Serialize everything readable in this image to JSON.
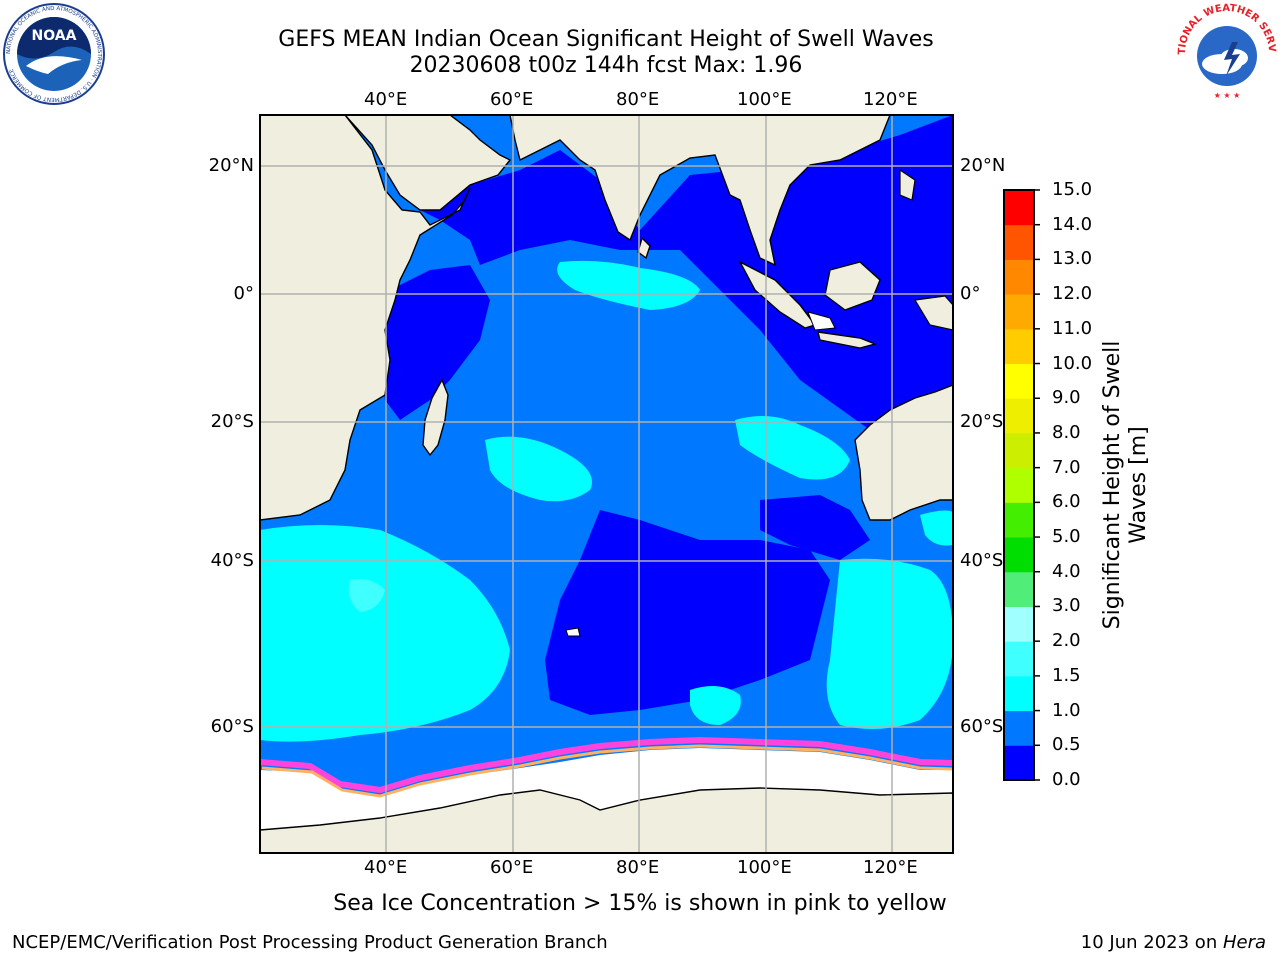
{
  "header": {
    "title_line1": "GEFS MEAN Indian Ocean Significant Height of Swell Waves",
    "title_line2": "20230608 t00z 144h fcst   Max: 1.96"
  },
  "logos": {
    "noaa_text": "NOAA",
    "noaa_ring": "NATIONAL OCEANIC AND ATMOSPHERIC ADMINISTRATION · U.S. DEPARTMENT OF COMMERCE",
    "nws_ring": "NATIONAL WEATHER SERVICE"
  },
  "map": {
    "lon_labels": [
      "40°E",
      "60°E",
      "80°E",
      "100°E",
      "120°E"
    ],
    "lat_labels": [
      "20°N",
      "0°",
      "20°S",
      "40°S",
      "60°S"
    ],
    "colors": {
      "land": "#efeedf",
      "ice": "#ffffff",
      "grid": "#b0b0b0"
    }
  },
  "colorbar": {
    "label": "Significant Height of Swell Waves [m]",
    "ticks": [
      "0.0",
      "0.5",
      "1.0",
      "1.5",
      "2.0",
      "3.0",
      "4.0",
      "5.0",
      "6.0",
      "7.0",
      "8.0",
      "9.0",
      "10.0",
      "11.0",
      "12.0",
      "13.0",
      "14.0",
      "15.0"
    ],
    "colors": [
      "#0000ff",
      "#0078ff",
      "#00ffff",
      "#40ffff",
      "#a0ffff",
      "#50ee78",
      "#00dd00",
      "#44ee00",
      "#b0ff00",
      "#ccee00",
      "#eeee00",
      "#ffff00",
      "#ffcc00",
      "#ffaa00",
      "#ff8800",
      "#ff5500",
      "#ff0000"
    ]
  },
  "caption": "Sea Ice Concentration > 15% is shown in pink to yellow",
  "footer": {
    "left": "NCEP/EMC/Verification Post Processing Product Generation Branch",
    "right_prefix": "10 Jun 2023 on ",
    "right_host": "Hera"
  }
}
